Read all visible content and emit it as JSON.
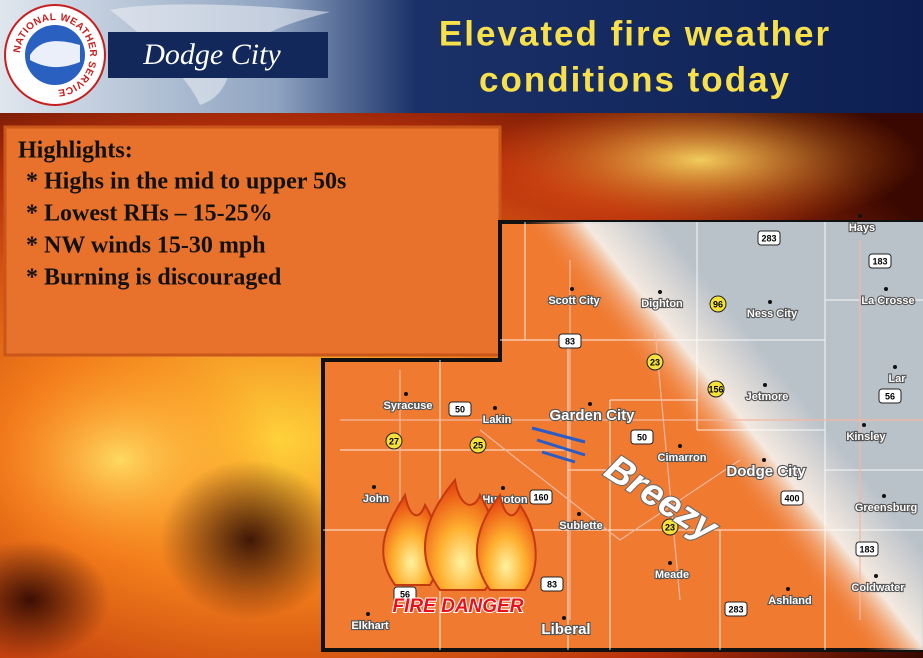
{
  "header": {
    "logo_text": "NATIONAL WEATHER SERVICE",
    "office": "Dodge City",
    "title_lines": [
      "Elevated fire weather",
      "conditions today"
    ]
  },
  "highlights": {
    "heading": "Highlights:",
    "items": [
      "* Highs in the mid to upper 50s",
      "* Lowest RHs – 15-25%",
      "* NW winds 15-30 mph",
      "* Burning is discouraged"
    ]
  },
  "map": {
    "cities": [
      "Hays",
      "Scott City",
      "Dighton",
      "Ness City",
      "La Crosse",
      "Lar",
      "Syracuse",
      "Lakin",
      "Garden City",
      "Jetmore",
      "Kinsley",
      "Cimarron",
      "Dodge City",
      "John",
      "Hugoton",
      "Sublette",
      "Greensburg",
      "Meade",
      "Ashland",
      "Coldwater",
      "Elkhart",
      "Liberal"
    ],
    "routes": [
      "283",
      "183",
      "96",
      "83",
      "23",
      "156",
      "50",
      "56",
      "27",
      "25",
      "50",
      "160",
      "23",
      "400",
      "183",
      "83",
      "283",
      "56"
    ],
    "wind_label": "Breezy",
    "hazard_label": "FIRE DANGER"
  }
}
